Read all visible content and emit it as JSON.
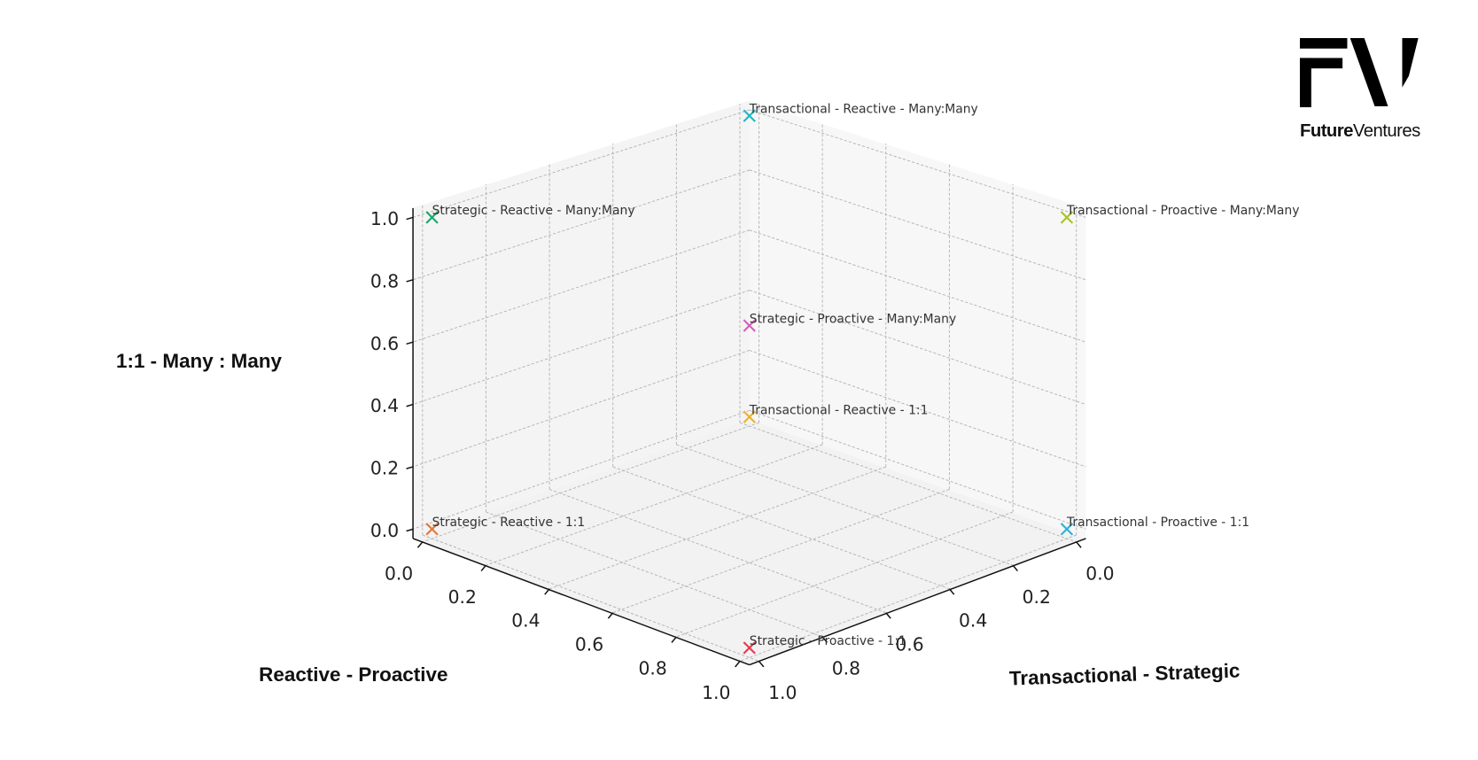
{
  "logo": {
    "text_bold": "Future",
    "text_light": "Ventures",
    "mark": "FV"
  },
  "chart_data": {
    "type": "scatter3d",
    "title": "",
    "xlabel": "Transactional - Strategic",
    "ylabel": "Reactive - Proactive",
    "zlabel": "1:1 - Many : Many",
    "xlim": [
      0,
      1
    ],
    "ylim": [
      0,
      1
    ],
    "zlim": [
      0,
      1
    ],
    "ticks": [
      "0.0",
      "0.2",
      "0.4",
      "0.6",
      "0.8",
      "1.0"
    ],
    "grid": true,
    "marker": "x",
    "points": [
      {
        "label": "Transactional - Reactive - Many:Many",
        "x": 0,
        "y": 0,
        "z": 1,
        "color": "#1fb8c4"
      },
      {
        "label": "Strategic - Reactive - Many:Many",
        "x": 1,
        "y": 0,
        "z": 1,
        "color": "#1aa86e"
      },
      {
        "label": "Transactional - Proactive - Many:Many",
        "x": 0,
        "y": 1,
        "z": 1,
        "color": "#a8c22a"
      },
      {
        "label": "Strategic - Proactive - Many:Many",
        "x": 1,
        "y": 1,
        "z": 1,
        "color": "#d95fb9"
      },
      {
        "label": "Transactional - Reactive - 1:1",
        "x": 0,
        "y": 0,
        "z": 0,
        "color": "#eeb228"
      },
      {
        "label": "Strategic - Reactive - 1:1",
        "x": 1,
        "y": 0,
        "z": 0,
        "color": "#e07b39"
      },
      {
        "label": "Transactional - Proactive - 1:1",
        "x": 0,
        "y": 1,
        "z": 0,
        "color": "#2bb5d9"
      },
      {
        "label": "Strategic - Proactive - 1:1",
        "x": 1,
        "y": 1,
        "z": 0,
        "color": "#e6394f"
      }
    ]
  }
}
